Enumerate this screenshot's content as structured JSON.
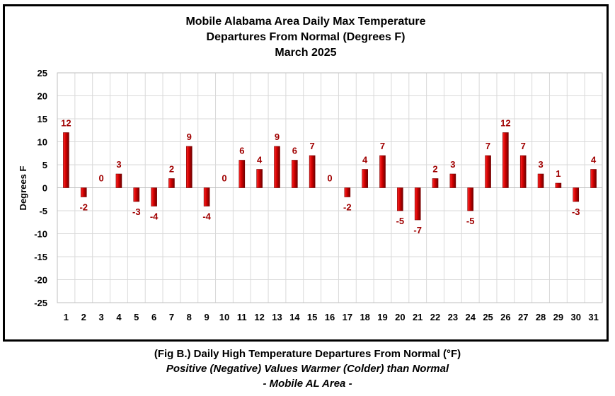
{
  "chart_data": {
    "type": "bar",
    "title_lines": [
      "Mobile Alabama Area Daily Max Temperature",
      "Departures From Normal (Degrees F)",
      "March 2025"
    ],
    "xlabel": "",
    "ylabel": "Degrees F",
    "ylim": [
      -25,
      25
    ],
    "yticks": [
      25,
      20,
      15,
      10,
      5,
      0,
      -5,
      -10,
      -15,
      -20,
      -25
    ],
    "grid": true,
    "categories": [
      "1",
      "2",
      "3",
      "4",
      "5",
      "6",
      "7",
      "8",
      "9",
      "10",
      "11",
      "12",
      "13",
      "14",
      "15",
      "16",
      "17",
      "18",
      "19",
      "20",
      "21",
      "22",
      "23",
      "24",
      "25",
      "26",
      "27",
      "28",
      "29",
      "30",
      "31"
    ],
    "values": [
      12,
      -2,
      0,
      3,
      -3,
      -4,
      2,
      9,
      -4,
      0,
      6,
      4,
      9,
      6,
      7,
      0,
      -2,
      4,
      7,
      -5,
      -7,
      2,
      3,
      -5,
      7,
      12,
      7,
      3,
      1,
      -3,
      4
    ],
    "colors": {
      "bar": "#c00000",
      "bar_dark": "#6e0000",
      "label": "#a00000"
    }
  },
  "caption": {
    "line1": "(Fig B.) Daily High Temperature Departures From Normal (°F)",
    "line2": "Positive (Negative) Values Warmer (Colder) than Normal",
    "line3": "- Mobile AL Area -"
  }
}
